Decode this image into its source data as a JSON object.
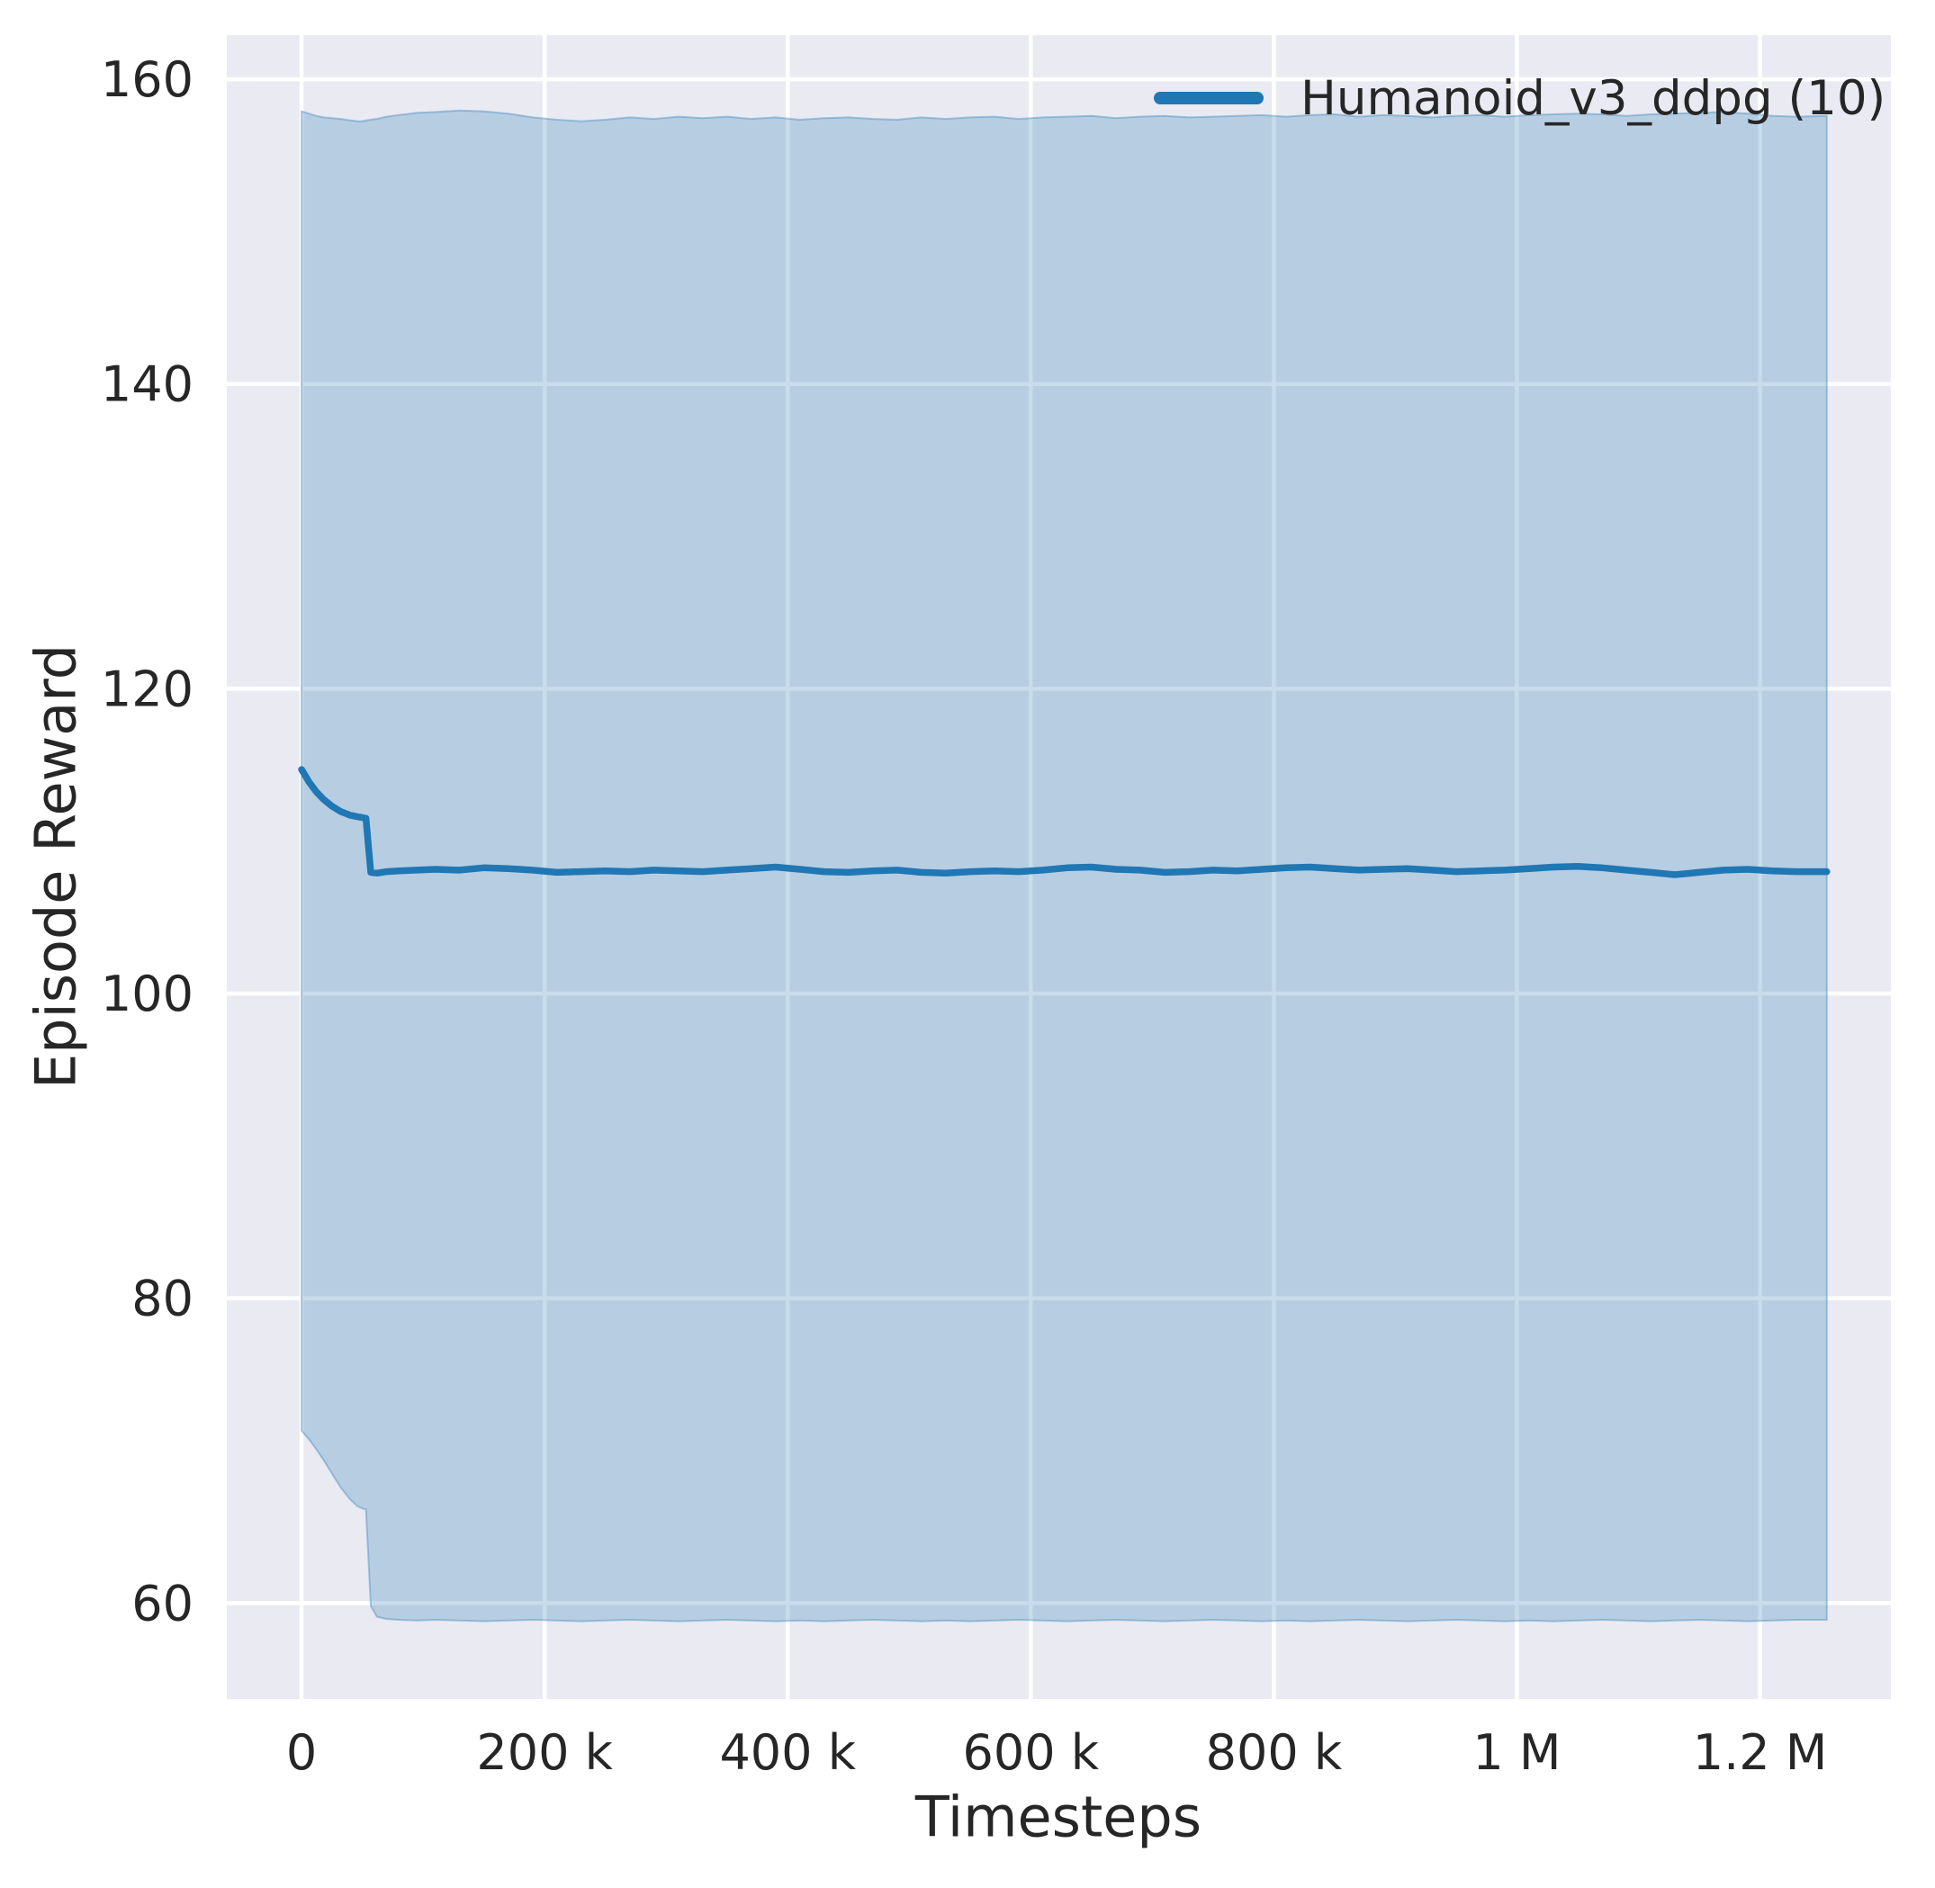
{
  "figure": {
    "background": "#ffffff",
    "axes_background": "#eaeaf2",
    "grid_color": "#ffffff",
    "tick_label_color": "#262626",
    "axis_label_color": "#262626"
  },
  "legend": {
    "entries": [
      {
        "label": "Humanoid_v3_ddpg (10)",
        "color": "#1f77b4"
      }
    ],
    "position": "upper right",
    "frame": false
  },
  "chart_data": {
    "type": "line",
    "title": "",
    "xlabel": "Timesteps",
    "ylabel": "Episode Reward",
    "grid": true,
    "legend_position": "upper right",
    "x_unit_note": "x values in thousands of timesteps (k)",
    "xlim_k": [
      -61.5,
      1307.7
    ],
    "ylim": [
      53.7,
      162.9
    ],
    "xticks": [
      {
        "value_k": 0,
        "label": "0"
      },
      {
        "value_k": 200,
        "label": "200 k"
      },
      {
        "value_k": 400,
        "label": "400 k"
      },
      {
        "value_k": 600,
        "label": "600 k"
      },
      {
        "value_k": 800,
        "label": "800 k"
      },
      {
        "value_k": 1000,
        "label": "1 M"
      },
      {
        "value_k": 1200,
        "label": "1.2 M"
      }
    ],
    "yticks": [
      {
        "value": 60,
        "label": "60"
      },
      {
        "value": 80,
        "label": "80"
      },
      {
        "value": 100,
        "label": "100"
      },
      {
        "value": 120,
        "label": "120"
      },
      {
        "value": 140,
        "label": "140"
      },
      {
        "value": 160,
        "label": "160"
      }
    ],
    "series": [
      {
        "name": "Humanoid_v3_ddpg (10)",
        "color": "#1f77b4",
        "band_fill_alpha": 0.25,
        "line_width": 7.5,
        "x_k": [
          0,
          6,
          12,
          18,
          25,
          32,
          40,
          46,
          50,
          53,
          57,
          62,
          70,
          80,
          95,
          110,
          130,
          150,
          170,
          190,
          210,
          230,
          250,
          270,
          290,
          310,
          330,
          350,
          370,
          390,
          410,
          430,
          450,
          470,
          490,
          510,
          530,
          550,
          570,
          590,
          610,
          630,
          650,
          670,
          690,
          710,
          730,
          750,
          770,
          790,
          810,
          830,
          850,
          870,
          890,
          910,
          930,
          950,
          970,
          990,
          1010,
          1030,
          1050,
          1070,
          1090,
          1110,
          1130,
          1150,
          1170,
          1190,
          1210,
          1230,
          1255
        ],
        "mean": [
          114.7,
          113.9,
          113.25,
          112.75,
          112.3,
          111.95,
          111.7,
          111.6,
          111.55,
          111.5,
          107.95,
          107.9,
          108.0,
          108.05,
          108.1,
          108.15,
          108.1,
          108.25,
          108.2,
          108.1,
          107.95,
          108.0,
          108.05,
          108.0,
          108.1,
          108.05,
          108.0,
          108.1,
          108.2,
          108.3,
          108.15,
          108.0,
          107.95,
          108.05,
          108.1,
          107.95,
          107.9,
          108.0,
          108.05,
          108.0,
          108.1,
          108.25,
          108.3,
          108.15,
          108.1,
          107.95,
          108.0,
          108.1,
          108.05,
          108.15,
          108.25,
          108.3,
          108.2,
          108.1,
          108.15,
          108.2,
          108.1,
          108.0,
          108.05,
          108.1,
          108.2,
          108.3,
          108.35,
          108.25,
          108.1,
          107.95,
          107.8,
          107.95,
          108.1,
          108.15,
          108.05,
          108.0,
          108.0
        ],
        "band_upper": [
          157.9,
          157.75,
          157.6,
          157.5,
          157.45,
          157.4,
          157.3,
          157.25,
          157.25,
          157.3,
          157.35,
          157.4,
          157.55,
          157.65,
          157.8,
          157.85,
          157.95,
          157.9,
          157.75,
          157.5,
          157.35,
          157.25,
          157.35,
          157.5,
          157.4,
          157.55,
          157.45,
          157.55,
          157.4,
          157.5,
          157.35,
          157.45,
          157.5,
          157.4,
          157.35,
          157.5,
          157.4,
          157.5,
          157.55,
          157.4,
          157.5,
          157.55,
          157.6,
          157.45,
          157.55,
          157.6,
          157.5,
          157.55,
          157.6,
          157.65,
          157.55,
          157.65,
          157.7,
          157.55,
          157.65,
          157.6,
          157.5,
          157.6,
          157.65,
          157.55,
          157.65,
          157.7,
          157.75,
          157.7,
          157.6,
          157.7,
          157.75,
          157.8,
          157.85,
          157.75,
          157.6,
          157.55,
          157.6
        ],
        "band_lower": [
          71.3,
          70.75,
          70.1,
          69.4,
          68.5,
          67.6,
          66.8,
          66.35,
          66.2,
          66.15,
          59.8,
          59.1,
          58.95,
          58.9,
          58.85,
          58.9,
          58.85,
          58.8,
          58.85,
          58.9,
          58.85,
          58.8,
          58.85,
          58.9,
          58.85,
          58.8,
          58.85,
          58.9,
          58.85,
          58.8,
          58.85,
          58.8,
          58.85,
          58.9,
          58.85,
          58.8,
          58.85,
          58.8,
          58.85,
          58.9,
          58.85,
          58.8,
          58.85,
          58.9,
          58.85,
          58.8,
          58.85,
          58.9,
          58.85,
          58.8,
          58.85,
          58.8,
          58.85,
          58.9,
          58.85,
          58.8,
          58.85,
          58.9,
          58.85,
          58.8,
          58.85,
          58.8,
          58.85,
          58.9,
          58.85,
          58.8,
          58.85,
          58.9,
          58.85,
          58.8,
          58.85,
          58.9,
          58.9
        ]
      }
    ]
  }
}
